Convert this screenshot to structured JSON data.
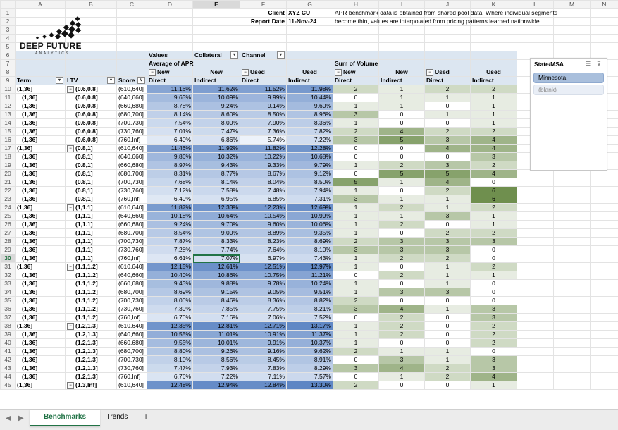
{
  "column_letters": [
    "A",
    "B",
    "C",
    "D",
    "E",
    "F",
    "G",
    "H",
    "I",
    "J",
    "K",
    "L",
    "M",
    "N"
  ],
  "logo": {
    "line1": "DEEP FUTURE",
    "line2": "ANALYTICS"
  },
  "header_info": {
    "client_label": "Client",
    "client_value": "XYZ CU",
    "date_label": "Report Date",
    "date_value": "11-Nov-24"
  },
  "note": {
    "line1": "APR benchmark data is obtained from shared pool data. Where individual segments",
    "line2": "become thin, values are interpolated from pricing patterns learned nationwide."
  },
  "pivot": {
    "values_label": "Values",
    "collateral_label": "Collateral",
    "channel_label": "Channel",
    "avg_apr_label": "Average of APR",
    "sum_volume_label": "Sum of Volume",
    "new_label": "New",
    "used_label": "Used",
    "direct_label": "Direct",
    "indirect_label": "Indirect",
    "term_label": "Term",
    "ltv_label": "LTV",
    "score_label": "Score",
    "term_value": "(1,36]"
  },
  "rows": [
    {
      "r": 10,
      "ltv": "(0.6,0.8]",
      "first": true,
      "score": "(610,640]",
      "apr": [
        "11.16%",
        "11.62%",
        "11.52%",
        "11.98%"
      ],
      "vol": [
        2,
        1,
        2,
        2
      ]
    },
    {
      "r": 11,
      "ltv": "(0.6,0.8]",
      "score": "(640,660]",
      "apr": [
        "9.63%",
        "10.09%",
        "9.99%",
        "10.44%"
      ],
      "vol": [
        0,
        1,
        1,
        1
      ]
    },
    {
      "r": 12,
      "ltv": "(0.6,0.8]",
      "score": "(660,680]",
      "apr": [
        "8.78%",
        "9.24%",
        "9.14%",
        "9.60%"
      ],
      "vol": [
        1,
        1,
        0,
        1
      ]
    },
    {
      "r": 13,
      "ltv": "(0.6,0.8]",
      "score": "(680,700]",
      "apr": [
        "8.14%",
        "8.60%",
        "8.50%",
        "8.96%"
      ],
      "vol": [
        3,
        0,
        1,
        1
      ]
    },
    {
      "r": 14,
      "ltv": "(0.6,0.8]",
      "score": "(700,730]",
      "apr": [
        "7.54%",
        "8.00%",
        "7.90%",
        "8.36%"
      ],
      "vol": [
        1,
        0,
        0,
        1
      ]
    },
    {
      "r": 15,
      "ltv": "(0.6,0.8]",
      "score": "(730,760]",
      "apr": [
        "7.01%",
        "7.47%",
        "7.36%",
        "7.82%"
      ],
      "vol": [
        2,
        4,
        2,
        2
      ]
    },
    {
      "r": 16,
      "ltv": "(0.6,0.8]",
      "score": "(760,Inf]",
      "apr": [
        "6.40%",
        "6.86%",
        "5.74%",
        "7.22%"
      ],
      "vol": [
        3,
        5,
        3,
        4
      ]
    },
    {
      "r": 17,
      "ltv": "(0.8,1]",
      "first": true,
      "score": "(610,640]",
      "apr": [
        "11.46%",
        "11.92%",
        "11.82%",
        "12.28%"
      ],
      "vol": [
        0,
        0,
        4,
        4
      ]
    },
    {
      "r": 18,
      "ltv": "(0.8,1]",
      "score": "(640,660]",
      "apr": [
        "9.86%",
        "10.32%",
        "10.22%",
        "10.68%"
      ],
      "vol": [
        0,
        0,
        0,
        3
      ]
    },
    {
      "r": 19,
      "ltv": "(0.8,1]",
      "score": "(660,680]",
      "apr": [
        "8.97%",
        "9.43%",
        "9.33%",
        "9.79%"
      ],
      "vol": [
        1,
        2,
        3,
        2
      ]
    },
    {
      "r": 20,
      "ltv": "(0.8,1]",
      "score": "(680,700]",
      "apr": [
        "8.31%",
        "8.77%",
        "8.67%",
        "9.12%"
      ],
      "vol": [
        0,
        5,
        5,
        4
      ]
    },
    {
      "r": 21,
      "ltv": "(0.8,1]",
      "score": "(700,730]",
      "apr": [
        "7.68%",
        "8.14%",
        "8.04%",
        "8.50%"
      ],
      "vol": [
        5,
        1,
        4,
        0
      ]
    },
    {
      "r": 22,
      "ltv": "(0.8,1]",
      "score": "(730,760]",
      "apr": [
        "7.12%",
        "7.58%",
        "7.48%",
        "7.94%"
      ],
      "vol": [
        1,
        0,
        2,
        6
      ]
    },
    {
      "r": 23,
      "ltv": "(0.8,1]",
      "score": "(760,Inf]",
      "apr": [
        "6.49%",
        "6.95%",
        "6.85%",
        "7.31%"
      ],
      "vol": [
        3,
        1,
        1,
        6
      ]
    },
    {
      "r": 24,
      "ltv": "(1,1.1]",
      "first": true,
      "score": "(610,640]",
      "apr": [
        "11.87%",
        "12.33%",
        "12.23%",
        "12.69%"
      ],
      "vol": [
        1,
        2,
        1,
        2
      ]
    },
    {
      "r": 25,
      "ltv": "(1,1.1]",
      "score": "(640,660]",
      "apr": [
        "10.18%",
        "10.64%",
        "10.54%",
        "10.99%"
      ],
      "vol": [
        1,
        1,
        3,
        1
      ]
    },
    {
      "r": 26,
      "ltv": "(1,1.1]",
      "score": "(660,680]",
      "apr": [
        "9.24%",
        "9.70%",
        "9.60%",
        "10.06%"
      ],
      "vol": [
        1,
        2,
        0,
        1
      ]
    },
    {
      "r": 27,
      "ltv": "(1,1.1]",
      "score": "(680,700]",
      "apr": [
        "8.54%",
        "9.00%",
        "8.89%",
        "9.35%"
      ],
      "vol": [
        1,
        0,
        2,
        2
      ]
    },
    {
      "r": 28,
      "ltv": "(1,1.1]",
      "score": "(700,730]",
      "apr": [
        "7.87%",
        "8.33%",
        "8.23%",
        "8.69%"
      ],
      "vol": [
        2,
        3,
        3,
        3
      ]
    },
    {
      "r": 29,
      "ltv": "(1,1.1]",
      "score": "(730,760]",
      "apr": [
        "7.28%",
        "7.74%",
        "7.64%",
        "8.10%"
      ],
      "vol": [
        3,
        3,
        3,
        0
      ]
    },
    {
      "r": 30,
      "ltv": "(1,1.1]",
      "score": "(760,Inf]",
      "apr": [
        "6.61%",
        "7.07%",
        "6.97%",
        "7.43%"
      ],
      "vol": [
        1,
        2,
        2,
        0
      ]
    },
    {
      "r": 31,
      "ltv": "(1.1,1.2]",
      "first": true,
      "score": "(610,640]",
      "apr": [
        "12.15%",
        "12.61%",
        "12.51%",
        "12.97%"
      ],
      "vol": [
        1,
        0,
        1,
        2
      ]
    },
    {
      "r": 32,
      "ltv": "(1.1,1.2]",
      "score": "(640,660]",
      "apr": [
        "10.40%",
        "10.86%",
        "10.75%",
        "11.21%"
      ],
      "vol": [
        0,
        2,
        1,
        1
      ]
    },
    {
      "r": 33,
      "ltv": "(1.1,1.2]",
      "score": "(660,680]",
      "apr": [
        "9.43%",
        "9.88%",
        "9.78%",
        "10.24%"
      ],
      "vol": [
        1,
        0,
        1,
        0
      ]
    },
    {
      "r": 34,
      "ltv": "(1.1,1.2]",
      "score": "(680,700]",
      "apr": [
        "8.69%",
        "9.15%",
        "9.05%",
        "9.51%"
      ],
      "vol": [
        1,
        3,
        3,
        0
      ]
    },
    {
      "r": 35,
      "ltv": "(1.1,1.2]",
      "score": "(700,730]",
      "apr": [
        "8.00%",
        "8.46%",
        "8.36%",
        "8.82%"
      ],
      "vol": [
        2,
        0,
        0,
        0
      ]
    },
    {
      "r": 36,
      "ltv": "(1.1,1.2]",
      "score": "(730,760]",
      "apr": [
        "7.39%",
        "7.85%",
        "7.75%",
        "8.21%"
      ],
      "vol": [
        3,
        4,
        1,
        3
      ]
    },
    {
      "r": 37,
      "ltv": "(1.1,1.2]",
      "score": "(760,Inf]",
      "apr": [
        "6.70%",
        "7.16%",
        "7.06%",
        "7.52%"
      ],
      "vol": [
        0,
        2,
        0,
        3
      ]
    },
    {
      "r": 38,
      "ltv": "(1.2,1.3]",
      "first": true,
      "score": "(610,640]",
      "apr": [
        "12.35%",
        "12.81%",
        "12.71%",
        "13.17%"
      ],
      "vol": [
        1,
        2,
        0,
        2
      ]
    },
    {
      "r": 39,
      "ltv": "(1.2,1.3]",
      "score": "(640,660]",
      "apr": [
        "10.55%",
        "11.01%",
        "10.91%",
        "11.37%"
      ],
      "vol": [
        1,
        2,
        0,
        2
      ]
    },
    {
      "r": 40,
      "ltv": "(1.2,1.3]",
      "score": "(660,680]",
      "apr": [
        "9.55%",
        "10.01%",
        "9.91%",
        "10.37%"
      ],
      "vol": [
        1,
        0,
        0,
        2
      ]
    },
    {
      "r": 41,
      "ltv": "(1.2,1.3]",
      "score": "(680,700]",
      "apr": [
        "8.80%",
        "9.26%",
        "9.16%",
        "9.62%"
      ],
      "vol": [
        2,
        1,
        1,
        0
      ]
    },
    {
      "r": 42,
      "ltv": "(1.2,1.3]",
      "score": "(700,730]",
      "apr": [
        "8.10%",
        "8.56%",
        "8.45%",
        "8.91%"
      ],
      "vol": [
        0,
        3,
        1,
        3
      ]
    },
    {
      "r": 43,
      "ltv": "(1.2,1.3]",
      "score": "(730,760]",
      "apr": [
        "7.47%",
        "7.93%",
        "7.83%",
        "8.29%"
      ],
      "vol": [
        3,
        4,
        2,
        3
      ]
    },
    {
      "r": 44,
      "ltv": "(1.2,1.3]",
      "score": "(760,Inf]",
      "apr": [
        "6.76%",
        "7.22%",
        "7.11%",
        "7.57%"
      ],
      "vol": [
        0,
        1,
        2,
        4
      ]
    },
    {
      "r": 45,
      "ltv": "(1.3,Inf]",
      "first": true,
      "score": "(610,640]",
      "apr": [
        "12.48%",
        "12.94%",
        "12.84%",
        "13.30%"
      ],
      "vol": [
        2,
        0,
        0,
        1
      ]
    }
  ],
  "selected": {
    "row": 30,
    "col": "E"
  },
  "slicer": {
    "title": "State/MSA",
    "items": [
      {
        "label": "Minnesota",
        "selected": true
      },
      {
        "label": "(blank)",
        "selected": false
      }
    ]
  },
  "tabs": [
    {
      "label": "Benchmarks",
      "active": true
    },
    {
      "label": "Trends",
      "active": false
    }
  ],
  "colors": {
    "apr_high": "#5e86c4",
    "apr_low": "#eef3fa",
    "vol_high": "#6f8f4e",
    "vol_low": "#ffffff",
    "accent": "#217346"
  }
}
